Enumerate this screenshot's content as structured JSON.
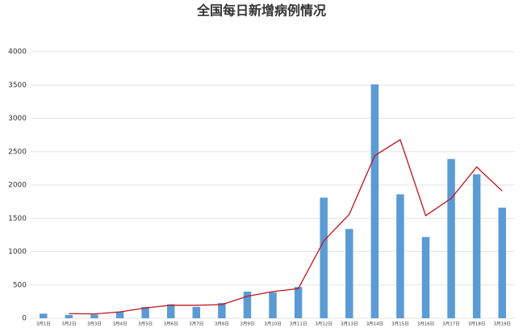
{
  "chart_data": {
    "type": "bar-line",
    "title": "全国每日新增病例情况",
    "categories": [
      "3月1日",
      "3月2日",
      "3月3日",
      "3月4日",
      "3月5日",
      "3月6日",
      "3月7日",
      "3月8日",
      "3月9日",
      "3月10日",
      "3月11日",
      "3月12日",
      "3月13日",
      "3月14日",
      "3月15日",
      "3月16日",
      "3月17日",
      "3月18日",
      "3月19日"
    ],
    "series": [
      {
        "type": "bar",
        "color": "#5b9bd5",
        "values": [
          70,
          50,
          55,
          100,
          170,
          210,
          170,
          230,
          400,
          390,
          470,
          1810,
          1340,
          3510,
          1860,
          1220,
          2390,
          2160,
          1660
        ]
      },
      {
        "type": "line",
        "color": "#c0141e",
        "values": [
          null,
          70,
          65,
          95,
          155,
          195,
          195,
          205,
          330,
          400,
          445,
          1160,
          1560,
          2440,
          2680,
          1540,
          1800,
          2270,
          1910
        ]
      }
    ],
    "ylim": [
      0,
      4000
    ],
    "yticks": [
      0,
      500,
      1000,
      1500,
      2000,
      2500,
      3000,
      3500,
      4000
    ],
    "grid": true
  }
}
